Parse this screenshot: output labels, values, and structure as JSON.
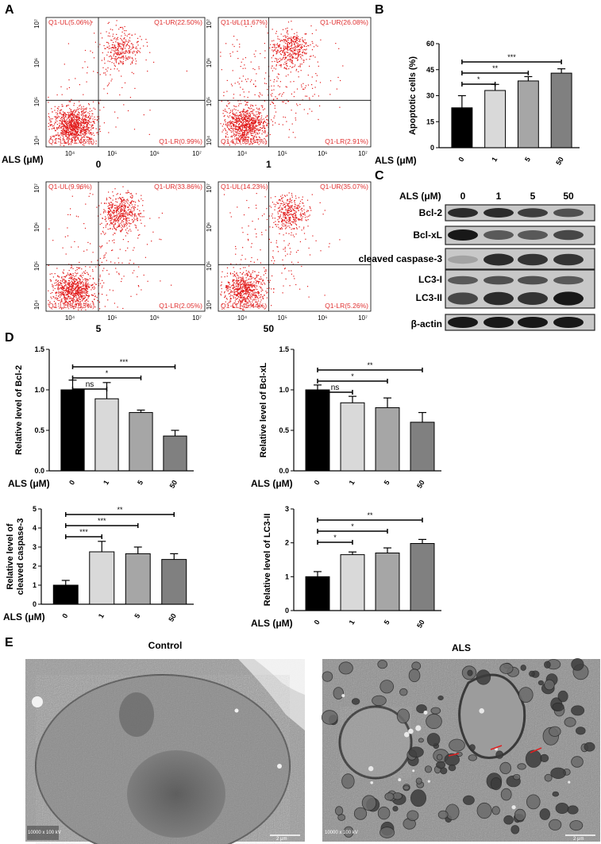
{
  "figure": {
    "panel_labels": [
      "A",
      "B",
      "C",
      "D",
      "E"
    ],
    "als_label": "ALS (μM)",
    "doses": [
      "0",
      "1",
      "5",
      "50"
    ]
  },
  "flow": {
    "axis_ticks": [
      "10⁴",
      "10⁵",
      "10⁶",
      "10⁷"
    ],
    "plots": [
      {
        "dose": "0",
        "UL": "Q1-UL(5.06%)",
        "UR": "Q1-UR(22.50%)",
        "LL": "Q1-LL(71.45%)",
        "LR": "Q1-LR(0.99%)"
      },
      {
        "dose": "1",
        "UL": "Q1-UL(11.67%)",
        "UR": "Q1-UR(26.08%)",
        "LL": "Q1-LL(59.34%)",
        "LR": "Q1-LR(2.91%)"
      },
      {
        "dose": "5",
        "UL": "Q1-UL(9.96%)",
        "UR": "Q1-UR(33.86%)",
        "LL": "Q1-LL(54.13%)",
        "LR": "Q1-LR(2.05%)"
      },
      {
        "dose": "50",
        "UL": "Q1-UL(14.23%)",
        "UR": "Q1-UR(35.07%)",
        "LL": "Q1-LL(45.44%)",
        "LR": "Q1-LR(5.26%)"
      }
    ]
  },
  "chart_data": [
    {
      "panel": "B",
      "type": "bar",
      "ylabel": "Apoptotic cells (%)",
      "xlabel": "ALS (μM)",
      "categories": [
        "0",
        "1",
        "5",
        "50"
      ],
      "values": [
        23,
        33,
        38.5,
        43
      ],
      "errors": [
        7,
        3.5,
        2.5,
        2.5
      ],
      "ylim": [
        0,
        60
      ],
      "yticks": [
        0,
        15,
        30,
        45,
        60
      ],
      "colors": [
        "#000000",
        "#d9d9d9",
        "#a6a6a6",
        "#808080"
      ],
      "significance": [
        {
          "from": "0",
          "to": "1",
          "label": "*"
        },
        {
          "from": "0",
          "to": "5",
          "label": "**"
        },
        {
          "from": "0",
          "to": "50",
          "label": "***"
        }
      ]
    },
    {
      "panel": "D1",
      "type": "bar",
      "ylabel": "Relative level of Bcl-2",
      "xlabel": "ALS (μM)",
      "categories": [
        "0",
        "1",
        "5",
        "50"
      ],
      "values": [
        1.0,
        0.89,
        0.72,
        0.43
      ],
      "errors": [
        0.12,
        0.2,
        0.03,
        0.07
      ],
      "ylim": [
        0,
        1.5
      ],
      "yticks": [
        0.0,
        0.5,
        1.0,
        1.5
      ],
      "colors": [
        "#000000",
        "#d9d9d9",
        "#a6a6a6",
        "#808080"
      ],
      "significance": [
        {
          "from": "0",
          "to": "1",
          "label": "ns"
        },
        {
          "from": "0",
          "to": "5",
          "label": "*"
        },
        {
          "from": "0",
          "to": "50",
          "label": "***"
        }
      ]
    },
    {
      "panel": "D2",
      "type": "bar",
      "ylabel": "Relative level of Bcl-xL",
      "xlabel": "ALS (μM)",
      "categories": [
        "0",
        "1",
        "5",
        "50"
      ],
      "values": [
        1.0,
        0.84,
        0.78,
        0.6
      ],
      "errors": [
        0.06,
        0.08,
        0.12,
        0.12
      ],
      "ylim": [
        0,
        1.5
      ],
      "yticks": [
        0.0,
        0.5,
        1.0,
        1.5
      ],
      "colors": [
        "#000000",
        "#d9d9d9",
        "#a6a6a6",
        "#808080"
      ],
      "significance": [
        {
          "from": "0",
          "to": "1",
          "label": "ns"
        },
        {
          "from": "0",
          "to": "5",
          "label": "*"
        },
        {
          "from": "0",
          "to": "50",
          "label": "**"
        }
      ]
    },
    {
      "panel": "D3",
      "type": "bar",
      "ylabel": "Relative level of cleaved caspase-3",
      "xlabel": "ALS (μM)",
      "categories": [
        "0",
        "1",
        "5",
        "50"
      ],
      "values": [
        1.0,
        2.75,
        2.65,
        2.35
      ],
      "errors": [
        0.25,
        0.55,
        0.35,
        0.3
      ],
      "ylim": [
        0,
        5
      ],
      "yticks": [
        0,
        1,
        2,
        3,
        4,
        5
      ],
      "colors": [
        "#000000",
        "#d9d9d9",
        "#a6a6a6",
        "#808080"
      ],
      "significance": [
        {
          "from": "0",
          "to": "1",
          "label": "***"
        },
        {
          "from": "0",
          "to": "5",
          "label": "***"
        },
        {
          "from": "0",
          "to": "50",
          "label": "**"
        }
      ]
    },
    {
      "panel": "D4",
      "type": "bar",
      "ylabel": "Relative level of LC3-II",
      "xlabel": "ALS (μM)",
      "categories": [
        "0",
        "1",
        "5",
        "50"
      ],
      "values": [
        1.0,
        1.65,
        1.7,
        1.98
      ],
      "errors": [
        0.15,
        0.08,
        0.15,
        0.12
      ],
      "ylim": [
        0,
        3
      ],
      "yticks": [
        0,
        1,
        2,
        3
      ],
      "colors": [
        "#000000",
        "#d9d9d9",
        "#a6a6a6",
        "#808080"
      ],
      "significance": [
        {
          "from": "0",
          "to": "1",
          "label": "*"
        },
        {
          "from": "0",
          "to": "5",
          "label": "*"
        },
        {
          "from": "0",
          "to": "50",
          "label": "**"
        }
      ]
    }
  ],
  "western": {
    "header_label": "ALS (μM)",
    "doses": [
      "0",
      "1",
      "5",
      "50"
    ],
    "rows": [
      {
        "name": "Bcl-2",
        "intensity": [
          0.85,
          0.85,
          0.75,
          0.65
        ]
      },
      {
        "name": "Bcl-xL",
        "intensity": [
          0.95,
          0.6,
          0.6,
          0.7
        ]
      },
      {
        "name": "cleaved caspase-3",
        "intensity": [
          0.2,
          0.85,
          0.8,
          0.8
        ]
      },
      {
        "name": "LC3-I",
        "intensity": [
          0.6,
          0.65,
          0.65,
          0.6
        ]
      },
      {
        "name": "LC3-II",
        "intensity": [
          0.7,
          0.85,
          0.8,
          0.95
        ]
      },
      {
        "name": "β-actin",
        "intensity": [
          0.95,
          0.95,
          0.95,
          0.95
        ]
      }
    ]
  },
  "em": {
    "left_title": "Control",
    "right_title": "ALS",
    "caption_left": "10000 x\n100 kV",
    "caption_right": "10000 x\n100 kV",
    "scale_left": "2 μm",
    "scale_right": "2 μm"
  }
}
